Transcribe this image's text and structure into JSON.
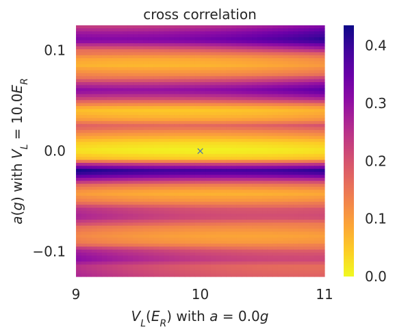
{
  "chart_data": {
    "type": "heatmap",
    "title": "cross correlation",
    "xlabel": {
      "var": "V",
      "sub": "L",
      "paren": "E",
      "paren_sub": "R",
      "rest": " with ",
      "cond_var": "a",
      "cond_val": " = 0.0",
      "cond_unit": "g"
    },
    "ylabel": {
      "var": "a",
      "paren": "g",
      "rest": " with ",
      "cond_var": "V",
      "cond_sub": "L",
      "cond_val": " = 10.0",
      "cond_unit": "E",
      "cond_unit_sub": "R"
    },
    "x_range": [
      9,
      11
    ],
    "y_range": [
      -0.125,
      0.125
    ],
    "x_ticks": [
      {
        "value": 9,
        "label": "9"
      },
      {
        "value": 10,
        "label": "10"
      },
      {
        "value": 11,
        "label": "11"
      }
    ],
    "y_ticks": [
      {
        "value": 0.1,
        "label": "0.1"
      },
      {
        "value": 0.0,
        "label": "0.0"
      },
      {
        "value": -0.1,
        "label": "−0.1"
      }
    ],
    "colorbar": {
      "cmap": "plasma_r",
      "range": [
        0.0,
        0.435
      ],
      "ticks": [
        {
          "value": 0.0,
          "label": "0.0"
        },
        {
          "value": 0.1,
          "label": "0.1"
        },
        {
          "value": 0.2,
          "label": "0.2"
        },
        {
          "value": 0.3,
          "label": "0.3"
        },
        {
          "value": 0.4,
          "label": "0.4"
        }
      ]
    },
    "marker": {
      "x": 10.0,
      "y": 0.0,
      "symbol": "×",
      "color": "#4c72b0"
    },
    "grid": false,
    "y_profile": [
      {
        "a": 0.125,
        "v": 0.24
      },
      {
        "a": 0.118,
        "v": 0.3
      },
      {
        "a": 0.11,
        "v": 0.34
      },
      {
        "a": 0.1,
        "v": 0.18
      },
      {
        "a": 0.092,
        "v": 0.09
      },
      {
        "a": 0.085,
        "v": 0.07
      },
      {
        "a": 0.075,
        "v": 0.13
      },
      {
        "a": 0.066,
        "v": 0.26
      },
      {
        "a": 0.06,
        "v": 0.31
      },
      {
        "a": 0.052,
        "v": 0.22
      },
      {
        "a": 0.044,
        "v": 0.08
      },
      {
        "a": 0.04,
        "v": 0.05
      },
      {
        "a": 0.032,
        "v": 0.08
      },
      {
        "a": 0.025,
        "v": 0.17
      },
      {
        "a": 0.018,
        "v": 0.11
      },
      {
        "a": 0.008,
        "v": 0.03
      },
      {
        "a": 0.0,
        "v": 0.005
      },
      {
        "a": -0.008,
        "v": 0.05
      },
      {
        "a": -0.014,
        "v": 0.25
      },
      {
        "a": -0.02,
        "v": 0.4
      },
      {
        "a": -0.026,
        "v": 0.3
      },
      {
        "a": -0.034,
        "v": 0.14
      },
      {
        "a": -0.042,
        "v": 0.07
      },
      {
        "a": -0.05,
        "v": 0.11
      },
      {
        "a": -0.058,
        "v": 0.2
      },
      {
        "a": -0.066,
        "v": 0.22
      },
      {
        "a": -0.075,
        "v": 0.13
      },
      {
        "a": -0.084,
        "v": 0.09
      },
      {
        "a": -0.092,
        "v": 0.11
      },
      {
        "a": -0.1,
        "v": 0.21
      },
      {
        "a": -0.108,
        "v": 0.24
      },
      {
        "a": -0.115,
        "v": 0.18
      },
      {
        "a": -0.125,
        "v": 0.2
      }
    ],
    "x_drift": {
      "slope": 0.045,
      "curvature": 0.05
    }
  }
}
